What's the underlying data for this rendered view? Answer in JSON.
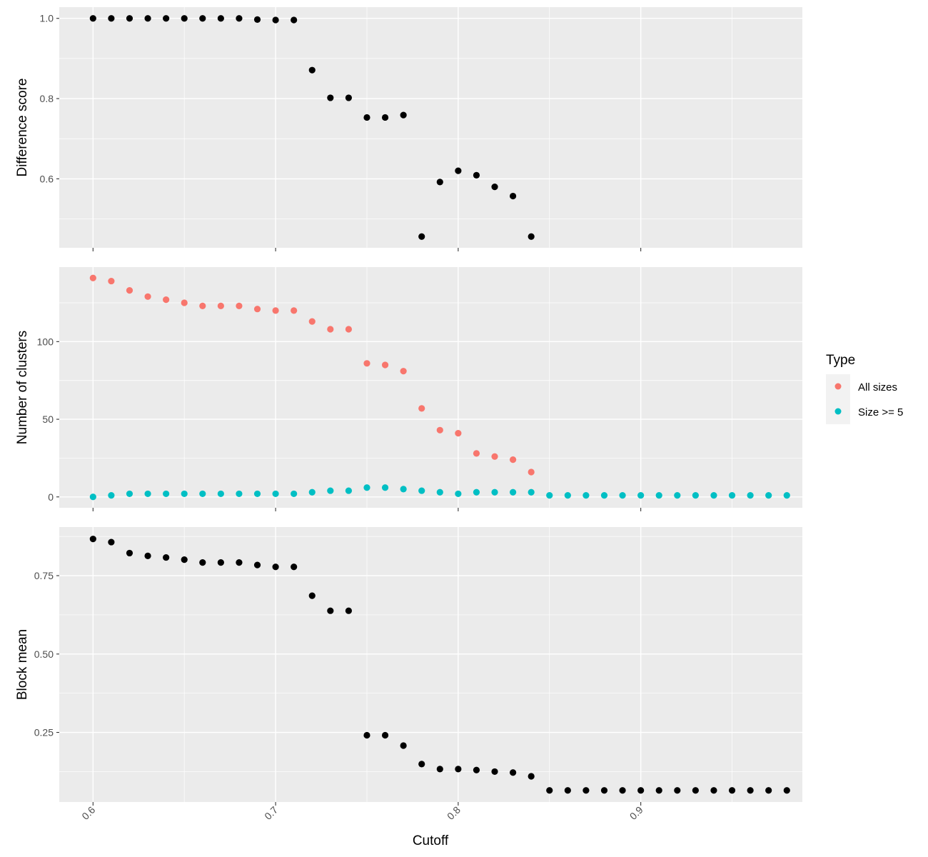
{
  "x_axis": {
    "label": "Cutoff",
    "ticks": [
      0.6,
      0.7,
      0.8,
      0.9
    ],
    "tick_labels": [
      "0.6",
      "0.7",
      "0.8",
      "0.9"
    ],
    "range": [
      0.5815,
      0.9885
    ]
  },
  "legend": {
    "title": "Type",
    "entries": [
      {
        "label": "All sizes",
        "color": "#F8766D"
      },
      {
        "label": "Size >= 5",
        "color": "#00BFC4"
      }
    ],
    "placement": "right"
  },
  "colors": {
    "panel_bg": "#EBEBEB",
    "grid": "#FFFFFF",
    "point_default": "#000000"
  },
  "chart_data": [
    {
      "type": "scatter",
      "ylabel": "Difference score",
      "xlabel": "Cutoff",
      "ylim": [
        0.428,
        1.028
      ],
      "yticks": [
        0.6,
        0.8,
        1.0
      ],
      "ytick_labels": [
        "0.6",
        "0.8",
        "1.0"
      ],
      "grid": true,
      "series": [
        {
          "color": "#000000",
          "x": [
            0.6,
            0.61,
            0.62,
            0.63,
            0.64,
            0.65,
            0.66,
            0.67,
            0.68,
            0.69,
            0.7,
            0.71,
            0.72,
            0.73,
            0.74,
            0.75,
            0.76,
            0.77,
            0.78,
            0.79,
            0.8,
            0.81,
            0.82,
            0.83,
            0.84
          ],
          "y": [
            1.0,
            1.0,
            1.0,
            1.0,
            1.0,
            1.0,
            1.0,
            1.0,
            1.0,
            0.997,
            0.996,
            0.996,
            0.871,
            0.802,
            0.802,
            0.753,
            0.753,
            0.759,
            0.456,
            0.592,
            0.62,
            0.609,
            0.58,
            0.557,
            0.456
          ]
        }
      ]
    },
    {
      "type": "scatter",
      "ylabel": "Number of clusters",
      "xlabel": "Cutoff",
      "ylim": [
        -7,
        148
      ],
      "yticks": [
        0,
        50,
        100
      ],
      "ytick_labels": [
        "0",
        "50",
        "100"
      ],
      "grid": true,
      "series": [
        {
          "name": "All sizes",
          "color": "#F8766D",
          "x": [
            0.6,
            0.61,
            0.62,
            0.63,
            0.64,
            0.65,
            0.66,
            0.67,
            0.68,
            0.69,
            0.7,
            0.71,
            0.72,
            0.73,
            0.74,
            0.75,
            0.76,
            0.77,
            0.78,
            0.79,
            0.8,
            0.81,
            0.82,
            0.83,
            0.84
          ],
          "y": [
            141,
            139,
            133,
            129,
            127,
            125,
            123,
            123,
            123,
            121,
            120,
            120,
            113,
            108,
            108,
            86,
            85,
            81,
            57,
            43,
            41,
            28,
            26,
            24,
            16
          ]
        },
        {
          "name": "Size >= 5",
          "color": "#00BFC4",
          "x": [
            0.6,
            0.61,
            0.62,
            0.63,
            0.64,
            0.65,
            0.66,
            0.67,
            0.68,
            0.69,
            0.7,
            0.71,
            0.72,
            0.73,
            0.74,
            0.75,
            0.76,
            0.77,
            0.78,
            0.79,
            0.8,
            0.81,
            0.82,
            0.83,
            0.84,
            0.85,
            0.86,
            0.87,
            0.88,
            0.89,
            0.9,
            0.91,
            0.92,
            0.93,
            0.94,
            0.95,
            0.96,
            0.97,
            0.98
          ],
          "y": [
            0,
            1,
            2,
            2,
            2,
            2,
            2,
            2,
            2,
            2,
            2,
            2,
            3,
            4,
            4,
            6,
            6,
            5,
            4,
            3,
            2,
            3,
            3,
            3,
            3,
            1,
            1,
            1,
            1,
            1,
            1,
            1,
            1,
            1,
            1,
            1,
            1,
            1,
            1
          ]
        }
      ]
    },
    {
      "type": "scatter",
      "ylabel": "Block mean",
      "xlabel": "Cutoff",
      "ylim": [
        0.028,
        0.905
      ],
      "yticks": [
        0.25,
        0.5,
        0.75
      ],
      "ytick_labels": [
        "0.25",
        "0.50",
        "0.75"
      ],
      "grid": true,
      "series": [
        {
          "color": "#000000",
          "x": [
            0.6,
            0.61,
            0.62,
            0.63,
            0.64,
            0.65,
            0.66,
            0.67,
            0.68,
            0.69,
            0.7,
            0.71,
            0.72,
            0.73,
            0.74,
            0.75,
            0.76,
            0.77,
            0.78,
            0.79,
            0.8,
            0.81,
            0.82,
            0.83,
            0.84,
            0.85,
            0.86,
            0.87,
            0.88,
            0.89,
            0.9,
            0.91,
            0.92,
            0.93,
            0.94,
            0.95,
            0.96,
            0.97,
            0.98
          ],
          "y": [
            0.867,
            0.857,
            0.822,
            0.813,
            0.808,
            0.801,
            0.792,
            0.792,
            0.792,
            0.784,
            0.778,
            0.778,
            0.686,
            0.638,
            0.638,
            0.241,
            0.241,
            0.208,
            0.149,
            0.133,
            0.133,
            0.13,
            0.125,
            0.122,
            0.11,
            0.065,
            0.065,
            0.065,
            0.065,
            0.065,
            0.065,
            0.065,
            0.065,
            0.065,
            0.065,
            0.065,
            0.065,
            0.065,
            0.065
          ]
        }
      ]
    }
  ]
}
